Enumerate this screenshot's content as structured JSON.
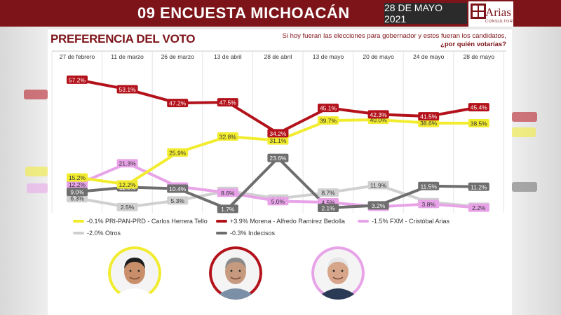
{
  "header": {
    "title": "09 ENCUESTA MICHOACÁN",
    "date": "28 DE MAYO 2021",
    "logo_name": "Arias",
    "logo_sub": "CONSULTORES"
  },
  "subtitle": "PREFERENCIA DEL VOTO",
  "question": {
    "line1": "Si hoy fueran las elecciones para gobernador y estos fueran los candidatos,",
    "line2": "¿por quién votarías?"
  },
  "colors": {
    "brand": "#7d1419",
    "morena": "#b3121b",
    "pri": "#f2ec2e",
    "fxm": "#e8a3e8",
    "otros": "#d0d0d0",
    "indecisos": "#6e6e6e"
  },
  "chart_data": {
    "type": "line",
    "categories": [
      "27 de febrero",
      "11 de marzo",
      "26 de marzo",
      "13 de abril",
      "28 de abril",
      "13 de mayo",
      "20 de mayo",
      "24 de mayo",
      "28 de mayo"
    ],
    "ylim": [
      0,
      65
    ],
    "grid": true,
    "legend_position": "bottom",
    "series": [
      {
        "key": "morena",
        "name": "+3.9% Morena - Alfredo Ramírez Bedolla",
        "color": "#b3121b",
        "values": [
          57.2,
          53.1,
          47.2,
          47.5,
          34.2,
          45.1,
          42.3,
          41.5,
          45.4
        ]
      },
      {
        "key": "pri",
        "name": "-0.1% PRI-PAN-PRD - Carlos Herrera Tello",
        "color": "#f2ec2e",
        "values": [
          15.2,
          12.2,
          25.9,
          32.8,
          31.1,
          39.7,
          40.0,
          38.6,
          38.5
        ]
      },
      {
        "key": "fxm",
        "name": "-1.5% FXM - Cristóbal Arias",
        "color": "#e8a3e8",
        "values": [
          12.2,
          21.3,
          11.3,
          8.6,
          5.0,
          4.5,
          2.6,
          3.8,
          2.2
        ]
      },
      {
        "key": "otros",
        "name": "-2.0% Otros",
        "color": "#d0d0d0",
        "values": [
          6.3,
          2.5,
          5.3,
          9.4,
          6.1,
          8.7,
          11.9,
          4.6,
          2.6
        ]
      },
      {
        "key": "indecisos",
        "name": "-0.3% Indecisos",
        "color": "#6e6e6e",
        "values": [
          9.0,
          11.0,
          10.4,
          1.7,
          23.6,
          2.1,
          3.2,
          11.5,
          11.2
        ]
      }
    ]
  },
  "candidates": [
    {
      "name": "Carlos Herrera Tello",
      "ring": "#f2ec2e",
      "skin": "#c98e6a",
      "hair": "#1d1d1d",
      "shirt": "#ffffff"
    },
    {
      "name": "Alfredo Ramírez Bedolla",
      "ring": "#b3121b",
      "skin": "#c69a7e",
      "hair": "#8a8a8a",
      "shirt": "#7b8fa6"
    },
    {
      "name": "Cristóbal Arias",
      "ring": "#e8a3e8",
      "skin": "#d6a58a",
      "hair": "#e6e6e6",
      "shirt": "#2b3a55"
    }
  ]
}
